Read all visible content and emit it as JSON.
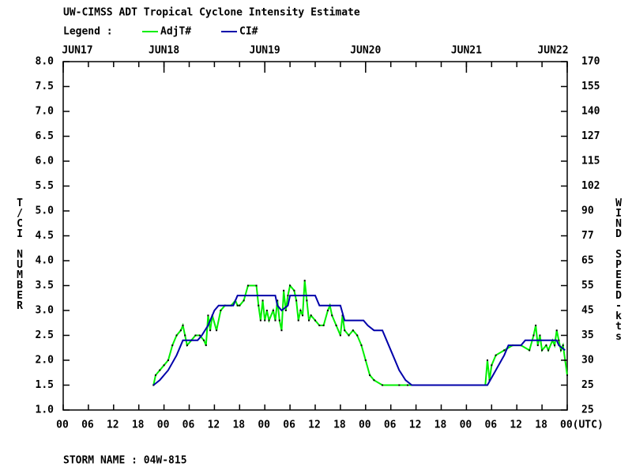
{
  "chart_data": {
    "type": "line",
    "title": "UW-CIMSS ADT Tropical Cyclone Intensity Estimate",
    "legend_label": "Legend :",
    "ylabel": "T/CI NUMBER",
    "y2label": "WIND SPEED-kts",
    "footer": "STORM NAME : 04W-815",
    "xlim": [
      0,
      120
    ],
    "ylim": [
      1,
      8
    ],
    "xticks": [
      {
        "value": 0,
        "label": "00"
      },
      {
        "value": 6,
        "label": "06"
      },
      {
        "value": 12,
        "label": "12"
      },
      {
        "value": 18,
        "label": "18"
      },
      {
        "value": 24,
        "label": "00"
      },
      {
        "value": 30,
        "label": "06"
      },
      {
        "value": 36,
        "label": "12"
      },
      {
        "value": 42,
        "label": "18"
      },
      {
        "value": 48,
        "label": "00"
      },
      {
        "value": 54,
        "label": "06"
      },
      {
        "value": 60,
        "label": "12"
      },
      {
        "value": 66,
        "label": "18"
      },
      {
        "value": 72,
        "label": "00"
      },
      {
        "value": 78,
        "label": "06"
      },
      {
        "value": 84,
        "label": "12"
      },
      {
        "value": 90,
        "label": "18"
      },
      {
        "value": 96,
        "label": "00"
      },
      {
        "value": 102,
        "label": "06"
      },
      {
        "value": 108,
        "label": "12"
      },
      {
        "value": 114,
        "label": "18"
      },
      {
        "value": 120,
        "label": "00(UTC)"
      }
    ],
    "date_ticks": [
      {
        "value": 0,
        "label": "JUN17"
      },
      {
        "value": 24,
        "label": "JUN18"
      },
      {
        "value": 48,
        "label": "JUN19"
      },
      {
        "value": 72,
        "label": "JUN20"
      },
      {
        "value": 96,
        "label": "JUN21"
      },
      {
        "value": 120,
        "label": "JUN22"
      }
    ],
    "yticks": [
      {
        "value": 1,
        "label": "1.0"
      },
      {
        "value": 1.5,
        "label": "1.5"
      },
      {
        "value": 2,
        "label": "2.0"
      },
      {
        "value": 2.5,
        "label": "2.5"
      },
      {
        "value": 3,
        "label": "3.0"
      },
      {
        "value": 3.5,
        "label": "3.5"
      },
      {
        "value": 4,
        "label": "4.0"
      },
      {
        "value": 4.5,
        "label": "4.5"
      },
      {
        "value": 5,
        "label": "5.0"
      },
      {
        "value": 5.5,
        "label": "5.5"
      },
      {
        "value": 6,
        "label": "6.0"
      },
      {
        "value": 6.5,
        "label": "6.5"
      },
      {
        "value": 7,
        "label": "7.0"
      },
      {
        "value": 7.5,
        "label": "7.5"
      },
      {
        "value": 8,
        "label": "8.0"
      }
    ],
    "wind_ticks": [
      {
        "ci": 1,
        "kts": 25
      },
      {
        "ci": 1.5,
        "kts": 25
      },
      {
        "ci": 2,
        "kts": 30
      },
      {
        "ci": 2.5,
        "kts": 35
      },
      {
        "ci": 3,
        "kts": 45
      },
      {
        "ci": 3.5,
        "kts": 55
      },
      {
        "ci": 4,
        "kts": 65
      },
      {
        "ci": 4.5,
        "kts": 77
      },
      {
        "ci": 5,
        "kts": 90
      },
      {
        "ci": 5.5,
        "kts": 102
      },
      {
        "ci": 6,
        "kts": 115
      },
      {
        "ci": 6.5,
        "kts": 127
      },
      {
        "ci": 7,
        "kts": 140
      },
      {
        "ci": 7.5,
        "kts": 155
      },
      {
        "ci": 8,
        "kts": 170
      }
    ],
    "series": [
      {
        "name": "AdjT#",
        "color": "#00ee00",
        "x": [
          21.5,
          22,
          23,
          24,
          25,
          26,
          27,
          28,
          28.5,
          29,
          29.5,
          30.5,
          31.5,
          32.5,
          33.5,
          34,
          34.5,
          35,
          35.5,
          36.5,
          37.5,
          38.5,
          40,
          41,
          41.5,
          42,
          43,
          44,
          46,
          46.5,
          47,
          47.5,
          48,
          48.5,
          49,
          50,
          50.5,
          51,
          51.5,
          52,
          52.5,
          53,
          53.5,
          54,
          55,
          55.5,
          56,
          56.5,
          57,
          57.5,
          58,
          58.5,
          59,
          60,
          61,
          62,
          63,
          63.5,
          64,
          65,
          66,
          66.5,
          67,
          68,
          69,
          70,
          71,
          72,
          73,
          74,
          76,
          80,
          82,
          100.5,
          101,
          101.5,
          102,
          103,
          105,
          107,
          109,
          111,
          112,
          112.5,
          113,
          113.5,
          114,
          115,
          115.5,
          116.5,
          117,
          117.5,
          118,
          118.5,
          119,
          119.5,
          120
        ],
        "values": [
          1.5,
          1.7,
          1.8,
          1.9,
          2.0,
          2.3,
          2.5,
          2.6,
          2.7,
          2.5,
          2.3,
          2.4,
          2.5,
          2.5,
          2.4,
          2.3,
          2.9,
          2.6,
          2.9,
          2.6,
          3.0,
          3.1,
          3.1,
          3.2,
          3.1,
          3.1,
          3.2,
          3.5,
          3.5,
          3.1,
          2.8,
          3.2,
          2.8,
          3.0,
          2.8,
          3.0,
          2.8,
          3.2,
          2.8,
          2.6,
          3.4,
          3.0,
          3.3,
          3.5,
          3.4,
          3.2,
          2.8,
          3.0,
          2.9,
          3.6,
          3.2,
          2.8,
          2.9,
          2.8,
          2.7,
          2.7,
          3.0,
          3.1,
          2.9,
          2.7,
          2.5,
          2.9,
          2.6,
          2.5,
          2.6,
          2.5,
          2.3,
          2.0,
          1.7,
          1.6,
          1.5,
          1.5,
          1.5,
          1.5,
          2.0,
          1.6,
          1.9,
          2.1,
          2.2,
          2.3,
          2.3,
          2.2,
          2.5,
          2.7,
          2.3,
          2.5,
          2.2,
          2.3,
          2.2,
          2.4,
          2.3,
          2.6,
          2.4,
          2.2,
          2.3,
          2.0,
          1.7
        ]
      },
      {
        "name": "CI#",
        "color": "#0000aa",
        "x": [
          21.5,
          23,
          25,
          27,
          28.5,
          32,
          33,
          34.5,
          36,
          37,
          40.5,
          41.5,
          50.5,
          51,
          52,
          53.5,
          54,
          60,
          61,
          66,
          67,
          71.5,
          72.5,
          74,
          76,
          77,
          78.5,
          80,
          81.5,
          83,
          101,
          103,
          105,
          106,
          109,
          110,
          117.5,
          118,
          119.5
        ],
        "values": [
          1.5,
          1.6,
          1.8,
          2.1,
          2.4,
          2.4,
          2.5,
          2.7,
          3.0,
          3.1,
          3.1,
          3.3,
          3.3,
          3.1,
          3.0,
          3.1,
          3.3,
          3.3,
          3.1,
          3.1,
          2.8,
          2.8,
          2.7,
          2.6,
          2.6,
          2.4,
          2.1,
          1.8,
          1.6,
          1.5,
          1.5,
          1.8,
          2.1,
          2.3,
          2.3,
          2.4,
          2.4,
          2.3,
          2.2
        ]
      }
    ]
  }
}
